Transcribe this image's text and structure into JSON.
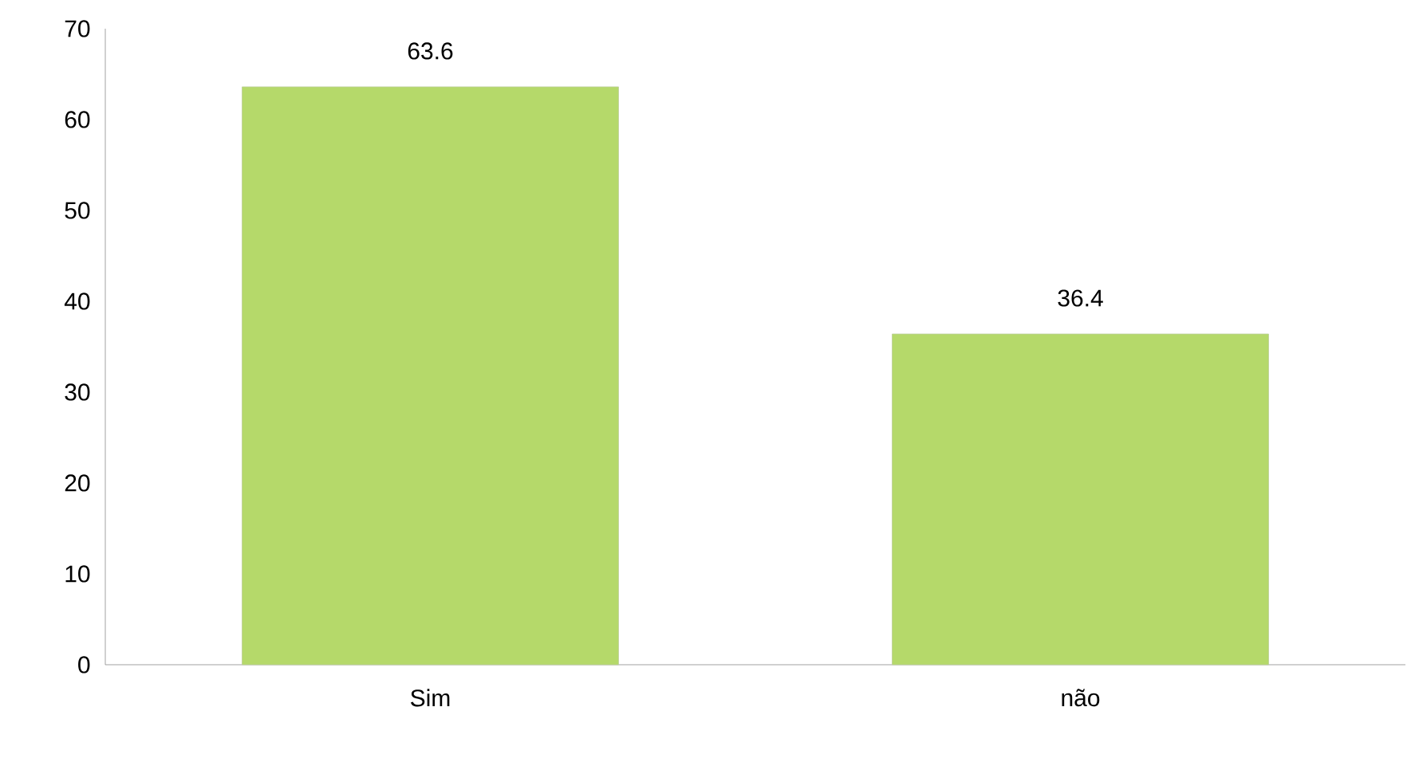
{
  "chart_data": {
    "type": "bar",
    "categories": [
      "Sim",
      "não"
    ],
    "values": [
      63.6,
      36.4
    ],
    "color": "#b5d96a",
    "ylim": [
      0,
      70
    ],
    "yticks": [
      0,
      10,
      20,
      30,
      40,
      50,
      60,
      70
    ],
    "data_labels": true
  }
}
